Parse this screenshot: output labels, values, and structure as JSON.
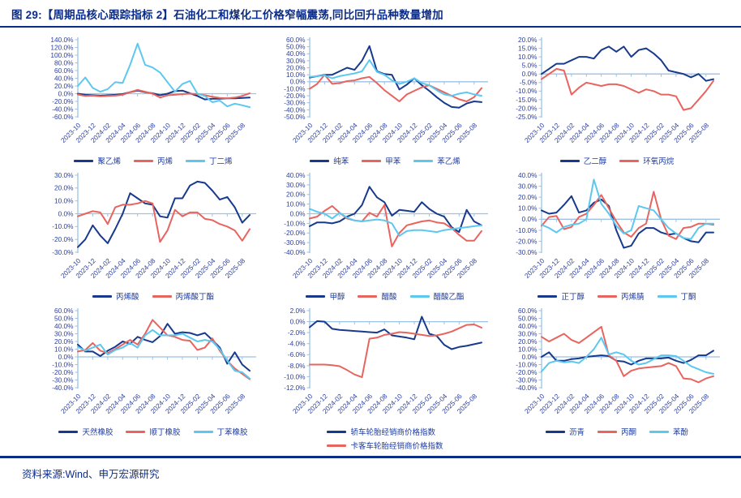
{
  "header": {
    "title": "图  29:【周期品核心跟踪指标 2】石油化工和煤化工价格窄幅震荡,同比回升品种数量增加"
  },
  "footer": {
    "source": "资料来源:Wind、申万宏源研究"
  },
  "colors": {
    "navy": "#173a8c",
    "red": "#e8645f",
    "cyan": "#5cc8f0",
    "axis": "#9cc2e5",
    "tick_label": "#2b3f9e",
    "title_text": "#0b2d89"
  },
  "months": [
    "2023-10",
    "2023-11",
    "2023-12",
    "2024-01",
    "2024-02",
    "2024-03",
    "2024-04",
    "2024-05",
    "2024-06",
    "2024-07",
    "2024-08",
    "2024-09",
    "2024-10",
    "2024-11",
    "2024-12",
    "2025-01",
    "2025-02",
    "2025-03",
    "2025-04",
    "2025-05",
    "2025-06",
    "2025-07",
    "2025-08",
    "2025-09"
  ],
  "xtick_labels": [
    "2023-10",
    "2023-12",
    "2024-02",
    "2024-04",
    "2024-06",
    "2024-08",
    "2024-10",
    "2024-12",
    "2025-02",
    "2025-04",
    "2025-06",
    "2025-08"
  ],
  "xtick_every": 2,
  "chart_data": [
    {
      "type": "line",
      "ylim": [
        -60,
        140
      ],
      "ystep": 20,
      "legend_layout": "row",
      "series": [
        {
          "name": "聚乙烯",
          "color": "navy",
          "values": [
            0,
            -3,
            -4,
            -5,
            -4,
            -3,
            -1,
            4,
            8,
            4,
            1,
            -4,
            0,
            7,
            8,
            1,
            -6,
            -15,
            -13,
            -13,
            -12,
            -12,
            -11,
            -10
          ]
        },
        {
          "name": "丙烯",
          "color": "red",
          "values": [
            -2,
            -6,
            -5,
            -7,
            -6,
            -5,
            -3,
            4,
            10,
            5,
            0,
            -10,
            -4,
            -3,
            -1,
            0,
            -1,
            -4,
            -8,
            -11,
            -12,
            -10,
            -6,
            1
          ]
        },
        {
          "name": "丁二烯",
          "color": "cyan",
          "values": [
            20,
            42,
            15,
            5,
            12,
            30,
            28,
            75,
            130,
            75,
            68,
            55,
            30,
            5,
            25,
            33,
            0,
            -6,
            -22,
            -18,
            -33,
            -26,
            -30,
            -35
          ]
        }
      ]
    },
    {
      "type": "line",
      "ylim": [
        -50,
        60
      ],
      "ystep": 10,
      "legend_layout": "row",
      "series": [
        {
          "name": "纯苯",
          "color": "navy",
          "values": [
            6,
            8,
            10,
            10,
            15,
            20,
            17,
            30,
            51,
            15,
            11,
            10,
            -11,
            -4,
            5,
            -5,
            -13,
            -22,
            -30,
            -36,
            -37,
            -31,
            -28,
            -29
          ]
        },
        {
          "name": "甲苯",
          "color": "red",
          "values": [
            -10,
            -3,
            10,
            -3,
            -2,
            1,
            2,
            5,
            7,
            -2,
            -12,
            -20,
            -28,
            -18,
            -13,
            -8,
            -5,
            -10,
            -15,
            -20,
            -25,
            -28,
            -22,
            -9
          ]
        },
        {
          "name": "苯乙烯",
          "color": "cyan",
          "values": [
            7,
            8,
            9,
            5,
            8,
            10,
            12,
            15,
            31,
            14,
            10,
            2,
            -3,
            0,
            5,
            -2,
            -5,
            -12,
            -18,
            -20,
            -17,
            -15,
            -18,
            -20
          ]
        }
      ]
    },
    {
      "type": "line",
      "ylim": [
        -25,
        20
      ],
      "ystep": 5,
      "legend_layout": "row",
      "series": [
        {
          "name": "乙二醇",
          "color": "navy",
          "values": [
            0,
            3,
            6,
            6,
            8,
            10,
            10,
            9,
            14,
            16,
            13,
            16,
            10,
            14,
            15,
            12,
            8,
            2,
            1,
            0,
            -2,
            0,
            -4,
            -3
          ]
        },
        {
          "name": "环氧丙烷",
          "color": "red",
          "values": [
            -3,
            0,
            3,
            2,
            -12,
            -8,
            -5,
            -6,
            -7,
            -6,
            -6,
            -7,
            -9,
            -11,
            -9,
            -10,
            -12,
            -12,
            -13,
            -21,
            -20,
            -15,
            -10,
            -4
          ]
        }
      ]
    },
    {
      "type": "line",
      "ylim": [
        -30,
        30
      ],
      "ystep": 10,
      "legend_layout": "row",
      "series": [
        {
          "name": "丙烯酸",
          "color": "navy",
          "values": [
            -26,
            -20,
            -9,
            -17,
            -23,
            -12,
            0,
            16,
            12,
            8,
            7,
            -2,
            -3,
            12,
            12,
            22,
            25,
            24,
            18,
            11,
            13,
            5,
            -7,
            -1
          ]
        },
        {
          "name": "丙烯酸丁酯",
          "color": "red",
          "values": [
            -2,
            0,
            2,
            1,
            -8,
            5,
            7,
            7,
            8,
            10,
            8,
            -22,
            -13,
            3,
            -2,
            1,
            1,
            -4,
            -5,
            -8,
            -10,
            -13,
            -21,
            -12
          ]
        }
      ]
    },
    {
      "type": "line",
      "ylim": [
        -40,
        40
      ],
      "ystep": 10,
      "legend_layout": "row",
      "series": [
        {
          "name": "甲醇",
          "color": "navy",
          "values": [
            -13,
            -9,
            -9,
            -10,
            -8,
            -3,
            0,
            9,
            28,
            17,
            12,
            -2,
            4,
            3,
            2,
            12,
            5,
            0,
            -3,
            -14,
            -19,
            4,
            -8,
            -12
          ]
        },
        {
          "name": "醋酸",
          "color": "red",
          "values": [
            -5,
            -3,
            3,
            8,
            1,
            -5,
            -7,
            -8,
            1,
            -3,
            9,
            -34,
            -20,
            -12,
            -10,
            -8,
            -7,
            -9,
            -10,
            -15,
            -22,
            -28,
            -28,
            -18
          ]
        },
        {
          "name": "醋酸乙酯",
          "color": "cyan",
          "values": [
            5,
            2,
            0,
            -5,
            1,
            -4,
            -7,
            -8,
            -7,
            -6,
            -7,
            -10,
            -23,
            -18,
            -17,
            -17,
            -18,
            -19,
            -17,
            -16,
            -15,
            -14,
            -13,
            -12
          ]
        }
      ]
    },
    {
      "type": "line",
      "ylim": [
        -30,
        40
      ],
      "ystep": 10,
      "legend_layout": "row",
      "series": [
        {
          "name": "正丁醇",
          "color": "navy",
          "values": [
            8,
            5,
            6,
            13,
            21,
            6,
            8,
            15,
            18,
            12,
            -10,
            -26,
            -24,
            -13,
            -8,
            -8,
            -12,
            -14,
            -13,
            -17,
            -20,
            -21,
            -12,
            -12
          ]
        },
        {
          "name": "丙烯腈",
          "color": "red",
          "values": [
            -6,
            2,
            3,
            -9,
            -7,
            2,
            5,
            13,
            22,
            10,
            -2,
            -12,
            -16,
            -8,
            -4,
            25,
            0,
            -15,
            -18,
            -8,
            -7,
            -4,
            -4,
            -5
          ]
        },
        {
          "name": "丁酮",
          "color": "cyan",
          "values": [
            -5,
            -8,
            -12,
            -7,
            -5,
            -4,
            0,
            36,
            14,
            5,
            -6,
            -13,
            -10,
            12,
            10,
            8,
            0,
            -8,
            -13,
            -17,
            -18,
            -8,
            -4,
            -4
          ]
        }
      ]
    },
    {
      "type": "line",
      "ylim": [
        -40,
        60
      ],
      "ystep": 10,
      "legend_layout": "row",
      "series": [
        {
          "name": "天然橡胶",
          "color": "navy",
          "values": [
            16,
            7,
            7,
            1,
            8,
            13,
            20,
            17,
            26,
            22,
            19,
            27,
            43,
            30,
            32,
            31,
            28,
            31,
            22,
            12,
            -9,
            6,
            -10,
            -18
          ]
        },
        {
          "name": "顺丁橡胶",
          "color": "red",
          "values": [
            7,
            9,
            18,
            8,
            5,
            10,
            16,
            22,
            16,
            30,
            48,
            38,
            28,
            26,
            22,
            21,
            9,
            12,
            24,
            8,
            -5,
            -15,
            -22,
            -29
          ]
        },
        {
          "name": "丁苯橡胶",
          "color": "cyan",
          "values": [
            13,
            8,
            12,
            16,
            3,
            9,
            12,
            18,
            12,
            28,
            35,
            28,
            28,
            28,
            30,
            25,
            20,
            22,
            20,
            10,
            -5,
            -18,
            -20,
            -28
          ]
        }
      ]
    },
    {
      "type": "line",
      "ylim": [
        -12,
        2
      ],
      "ystep": 2,
      "legend_layout": "stacked",
      "series": [
        {
          "name": "轿车轮胎经销商价格指数",
          "color": "navy",
          "values": [
            -1.0,
            0.1,
            0.0,
            -1.3,
            -1.5,
            -1.6,
            -1.7,
            -1.8,
            -1.9,
            -2.0,
            -1.4,
            -2.5,
            -2.7,
            -2.9,
            -3.2,
            0.9,
            -2.2,
            -2.6,
            -4.2,
            -5.0,
            -4.6,
            -4.4,
            -4.1,
            -3.8
          ]
        },
        {
          "name": "卡客车轮胎经销商价格指数",
          "color": "red",
          "values": [
            -7.8,
            -7.8,
            -7.8,
            -7.9,
            -8.1,
            -8.8,
            -9.6,
            -10.1,
            -3.1,
            -2.9,
            -2.4,
            -2.2,
            -1.9,
            -2.0,
            -2.2,
            -2.4,
            -2.6,
            -2.5,
            -2.2,
            -1.8,
            -1.2,
            -0.6,
            -0.5,
            -1.1
          ]
        }
      ]
    },
    {
      "type": "line",
      "ylim": [
        -40,
        60
      ],
      "ystep": 10,
      "legend_layout": "row",
      "series": [
        {
          "name": "沥青",
          "color": "navy",
          "values": [
            0,
            6,
            -5,
            -5,
            -3,
            -2,
            0,
            1,
            2,
            1,
            -5,
            -6,
            -10,
            -5,
            -2,
            -2,
            -2,
            -1,
            -5,
            -8,
            -4,
            2,
            2,
            8
          ]
        },
        {
          "name": "丙酮",
          "color": "red",
          "values": [
            26,
            20,
            25,
            30,
            22,
            18,
            25,
            32,
            39,
            2,
            -5,
            -25,
            -18,
            -15,
            -14,
            -13,
            -12,
            -8,
            -12,
            -28,
            -29,
            -33,
            -28,
            -25
          ]
        },
        {
          "name": "苯酚",
          "color": "cyan",
          "values": [
            -19,
            -8,
            -5,
            -7,
            -6,
            -8,
            0,
            10,
            25,
            3,
            6,
            3,
            -5,
            -10,
            -8,
            -3,
            2,
            2,
            1,
            -5,
            -12,
            -16,
            -20,
            -22
          ]
        }
      ]
    }
  ]
}
